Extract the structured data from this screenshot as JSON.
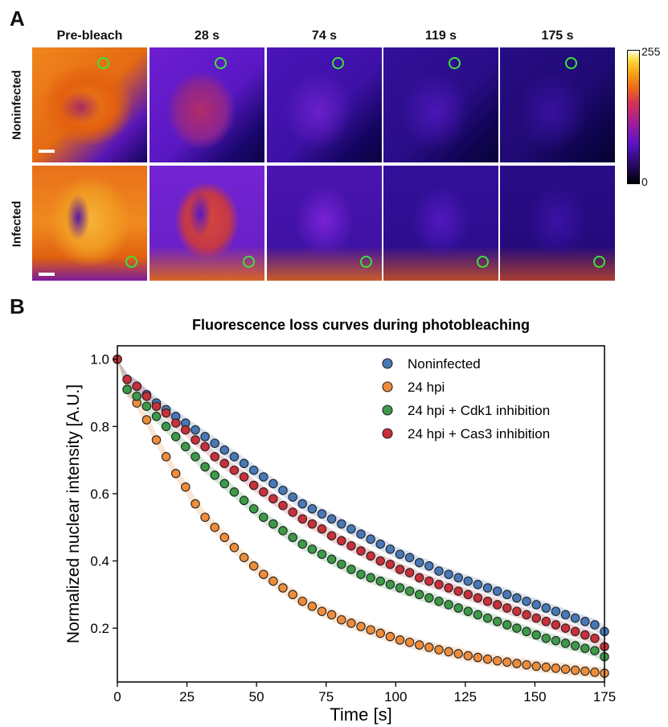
{
  "panel_a": {
    "letter": "A",
    "columns": [
      "Pre-bleach",
      "28 s",
      "74 s",
      "119 s",
      "175 s"
    ],
    "rows": [
      "Noninfected",
      "Infected"
    ],
    "colorbar": {
      "max_label": "255",
      "min_label": "0",
      "colormap": "gnuplot/fire"
    }
  },
  "panel_b": {
    "letter": "B"
  },
  "chart_data": {
    "type": "scatter",
    "title": "Fluorescence loss curves during photobleaching",
    "xlabel": "Time [s]",
    "ylabel": "Normalized nuclear intensity [A.U.]",
    "xlim": [
      0,
      175
    ],
    "ylim": [
      0.04,
      1.04
    ],
    "xticks": [
      0,
      25,
      50,
      75,
      100,
      125,
      150,
      175
    ],
    "yticks": [
      0.2,
      0.4,
      0.6,
      0.8,
      1.0
    ],
    "ytick_labels": [
      "0.2",
      "0.4",
      "0.6",
      "0.8",
      "1.0"
    ],
    "grid": false,
    "legend_position": "top-right",
    "x": [
      0,
      3.5,
      7,
      10.5,
      14,
      17.5,
      21,
      24.5,
      28,
      31.5,
      35,
      38.5,
      42,
      45.5,
      49,
      52.5,
      56,
      59.5,
      63,
      66.5,
      70,
      73.5,
      77,
      80.5,
      84,
      87.5,
      91,
      94.5,
      98,
      101.5,
      105,
      108.5,
      112,
      115.5,
      119,
      122.5,
      126,
      129.5,
      133,
      136.5,
      140,
      143.5,
      147,
      150.5,
      154,
      157.5,
      161,
      164.5,
      168,
      171.5,
      175
    ],
    "series": [
      {
        "name": "Noninfected",
        "color": "#4878b6",
        "values": [
          1.0,
          0.94,
          0.92,
          0.895,
          0.87,
          0.85,
          0.83,
          0.81,
          0.79,
          0.77,
          0.75,
          0.73,
          0.71,
          0.69,
          0.67,
          0.65,
          0.63,
          0.61,
          0.59,
          0.57,
          0.555,
          0.54,
          0.525,
          0.51,
          0.495,
          0.48,
          0.465,
          0.45,
          0.435,
          0.42,
          0.41,
          0.395,
          0.385,
          0.37,
          0.36,
          0.35,
          0.34,
          0.33,
          0.32,
          0.31,
          0.3,
          0.29,
          0.28,
          0.27,
          0.26,
          0.25,
          0.24,
          0.23,
          0.22,
          0.21,
          0.19
        ]
      },
      {
        "name": "24 hpi",
        "color": "#ee8c3a",
        "values": [
          1.0,
          0.91,
          0.87,
          0.82,
          0.76,
          0.71,
          0.66,
          0.62,
          0.57,
          0.53,
          0.5,
          0.47,
          0.44,
          0.41,
          0.385,
          0.36,
          0.34,
          0.32,
          0.3,
          0.28,
          0.265,
          0.25,
          0.24,
          0.225,
          0.215,
          0.205,
          0.195,
          0.185,
          0.175,
          0.165,
          0.158,
          0.15,
          0.143,
          0.136,
          0.13,
          0.124,
          0.118,
          0.113,
          0.108,
          0.103,
          0.099,
          0.095,
          0.091,
          0.087,
          0.084,
          0.081,
          0.078,
          0.075,
          0.072,
          0.069,
          0.066
        ]
      },
      {
        "name": "24 hpi + Cdk1 inhibition",
        "color": "#3c9a48",
        "values": [
          1.0,
          0.91,
          0.89,
          0.86,
          0.83,
          0.8,
          0.77,
          0.74,
          0.71,
          0.68,
          0.655,
          0.63,
          0.605,
          0.58,
          0.555,
          0.53,
          0.51,
          0.49,
          0.47,
          0.45,
          0.435,
          0.42,
          0.405,
          0.39,
          0.375,
          0.36,
          0.35,
          0.34,
          0.33,
          0.32,
          0.31,
          0.3,
          0.29,
          0.28,
          0.27,
          0.26,
          0.25,
          0.24,
          0.23,
          0.22,
          0.21,
          0.2,
          0.19,
          0.18,
          0.17,
          0.163,
          0.155,
          0.148,
          0.14,
          0.133,
          0.115
        ]
      },
      {
        "name": "24 hpi + Cas3 inhibition",
        "color": "#c8303a",
        "values": [
          1.0,
          0.94,
          0.92,
          0.89,
          0.86,
          0.84,
          0.81,
          0.79,
          0.76,
          0.74,
          0.71,
          0.69,
          0.67,
          0.65,
          0.625,
          0.605,
          0.585,
          0.565,
          0.545,
          0.525,
          0.51,
          0.495,
          0.475,
          0.46,
          0.445,
          0.43,
          0.415,
          0.4,
          0.39,
          0.375,
          0.365,
          0.35,
          0.34,
          0.33,
          0.32,
          0.31,
          0.3,
          0.29,
          0.28,
          0.27,
          0.26,
          0.25,
          0.24,
          0.23,
          0.22,
          0.21,
          0.2,
          0.19,
          0.18,
          0.17,
          0.145
        ]
      }
    ]
  }
}
